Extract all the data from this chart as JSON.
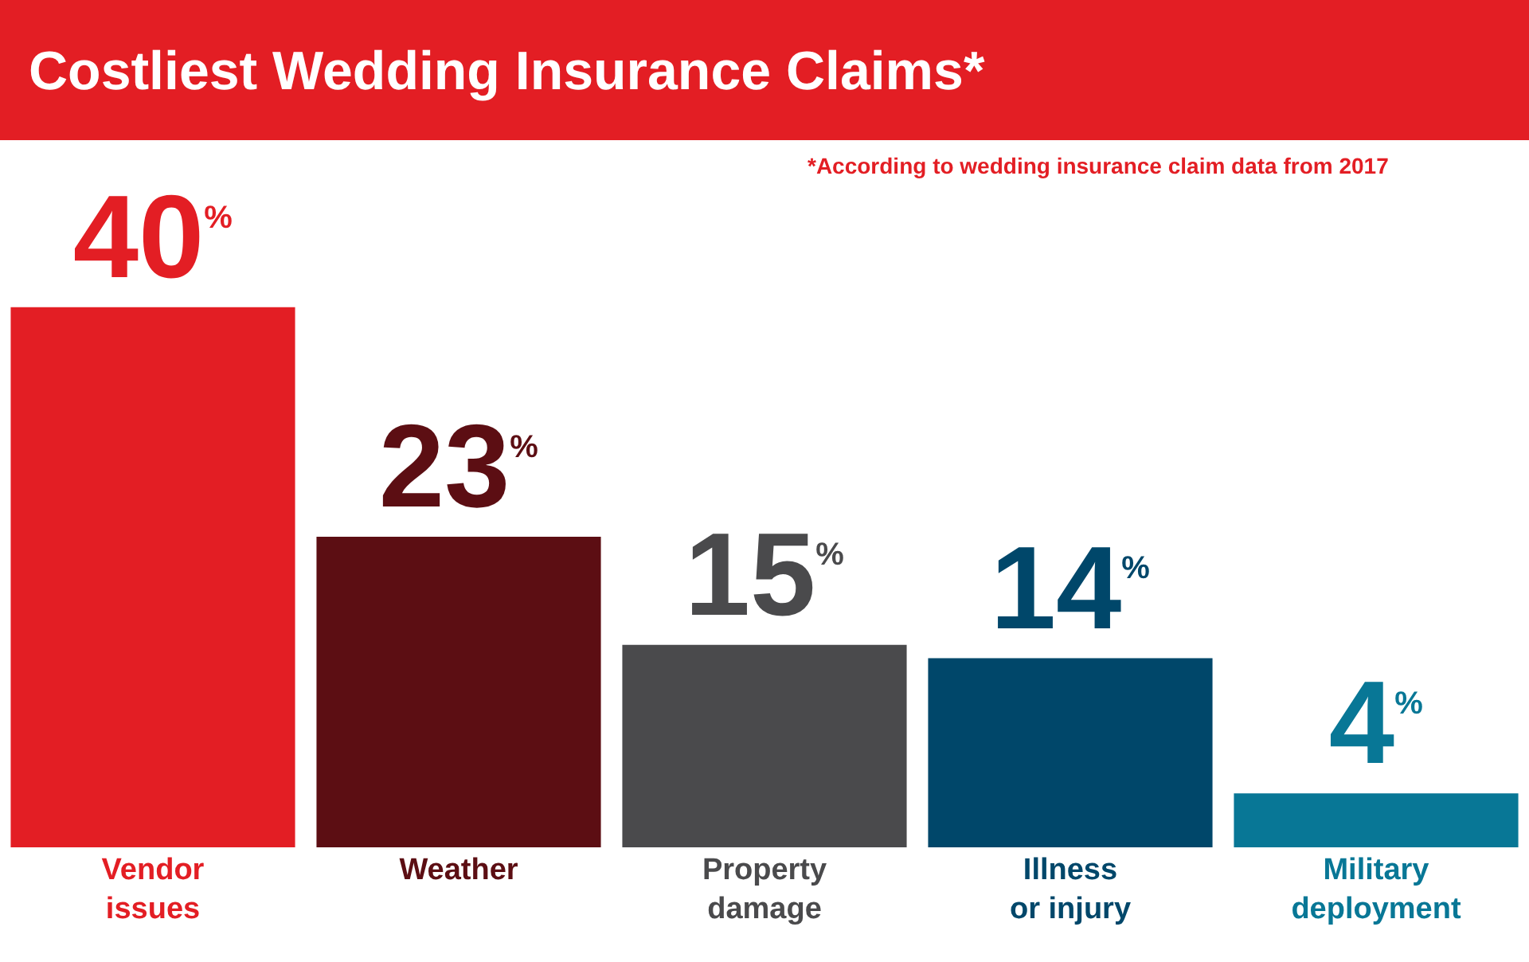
{
  "chart_data": {
    "type": "bar",
    "title": "Costliest Wedding Insurance Claims*",
    "annotations": [
      "*According to wedding insurance claim data from 2017"
    ],
    "categories": [
      "Vendor issues",
      "Weather",
      "Property damage",
      "Illness or injury",
      "Military deployment"
    ],
    "values": [
      40,
      23,
      15,
      14,
      4
    ],
    "colors": [
      "#e31e24",
      "#5c0e13",
      "#4a4a4c",
      "#00476a",
      "#087796"
    ],
    "value_labels": [
      "40$^{%}$",
      "23$^{%}$",
      "15$^{%}$",
      "14$^{%}$",
      "4$^{%}$"
    ]
  }
}
